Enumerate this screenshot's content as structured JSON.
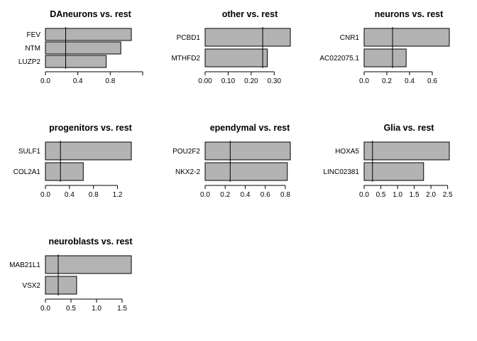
{
  "chart_data": [
    {
      "type": "bar",
      "orientation": "horizontal",
      "title": "DAneurons vs. rest",
      "categories": [
        "FEV",
        "NTM",
        "LUZP2"
      ],
      "values": [
        1.06,
        0.93,
        0.75
      ],
      "reference_line": 0.25,
      "xlim": [
        0,
        1.06
      ],
      "xticks": [
        0.0,
        0.4,
        0.8,
        1.2
      ],
      "xtick_labels": [
        "0.0",
        "0.4",
        "0.8",
        ""
      ]
    },
    {
      "type": "bar",
      "orientation": "horizontal",
      "title": "other vs. rest",
      "categories": [
        "PCBD1",
        "MTHFD2"
      ],
      "values": [
        0.37,
        0.27
      ],
      "reference_line": 0.25,
      "xlim": [
        0,
        0.37
      ],
      "xticks": [
        0.0,
        0.1,
        0.2,
        0.3
      ],
      "xtick_labels": [
        "0.00",
        "0.10",
        "0.20",
        "0.30"
      ]
    },
    {
      "type": "bar",
      "orientation": "horizontal",
      "title": "neurons vs. rest",
      "categories": [
        "CNR1",
        "AC022075.1"
      ],
      "values": [
        0.75,
        0.37
      ],
      "reference_line": 0.25,
      "xlim": [
        0,
        0.75
      ],
      "xticks": [
        0.0,
        0.2,
        0.4,
        0.6
      ],
      "xtick_labels": [
        "0.0",
        "0.2",
        "0.4",
        "0.6"
      ]
    },
    {
      "type": "bar",
      "orientation": "horizontal",
      "title": "progenitors vs. rest",
      "categories": [
        "SULF1",
        "COL2A1"
      ],
      "values": [
        1.43,
        0.63
      ],
      "reference_line": 0.25,
      "xlim": [
        0,
        1.43
      ],
      "xticks": [
        0.0,
        0.4,
        0.8,
        1.2
      ],
      "xtick_labels": [
        "0.0",
        "0.4",
        "0.8",
        "1.2"
      ]
    },
    {
      "type": "bar",
      "orientation": "horizontal",
      "title": "ependymal vs. rest",
      "categories": [
        "POU2F2",
        "NKX2-2"
      ],
      "values": [
        0.85,
        0.82
      ],
      "reference_line": 0.25,
      "xlim": [
        0,
        0.85
      ],
      "xticks": [
        0.0,
        0.2,
        0.4,
        0.6,
        0.8
      ],
      "xtick_labels": [
        "0.0",
        "0.2",
        "0.4",
        "0.6",
        "0.8"
      ]
    },
    {
      "type": "bar",
      "orientation": "horizontal",
      "title": "Glia vs. rest",
      "categories": [
        "HOXA5",
        "LINC02381"
      ],
      "values": [
        2.55,
        1.78
      ],
      "reference_line": 0.25,
      "xlim": [
        0,
        2.55
      ],
      "xticks": [
        0.0,
        0.5,
        1.0,
        1.5,
        2.0,
        2.5
      ],
      "xtick_labels": [
        "0.0",
        "0.5",
        "1.0",
        "1.5",
        "2.0",
        "2.5"
      ]
    },
    {
      "type": "bar",
      "orientation": "horizontal",
      "title": "neuroblasts vs. rest",
      "categories": [
        "MAB21L1",
        "VSX2"
      ],
      "values": [
        1.68,
        0.61
      ],
      "reference_line": 0.25,
      "xlim": [
        0,
        1.68
      ],
      "xticks": [
        0.0,
        0.5,
        1.0,
        1.5
      ],
      "xtick_labels": [
        "0.0",
        "0.5",
        "1.0",
        "1.5"
      ]
    }
  ],
  "style": {
    "bar_fill": "#b3b3b3",
    "bar_stroke": "#000000",
    "background": "#ffffff"
  }
}
